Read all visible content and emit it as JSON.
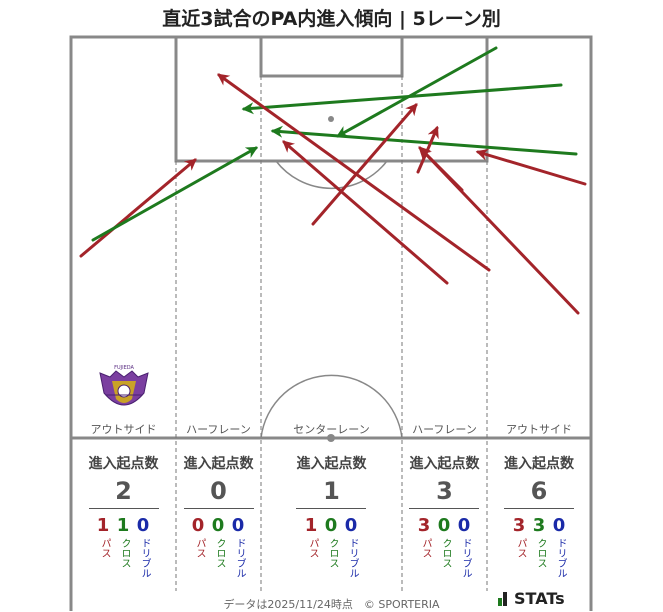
{
  "title": "直近3試合のPA内進入傾向 | 5レーン別",
  "lanes": [
    {
      "label": "アウトサイド",
      "header": "進入起点数",
      "total": "2",
      "pass": "1",
      "cross": "1",
      "dribble": "0"
    },
    {
      "label": "ハーフレーン",
      "header": "進入起点数",
      "total": "0",
      "pass": "0",
      "cross": "0",
      "dribble": "0"
    },
    {
      "label": "センターレーン",
      "header": "進入起点数",
      "total": "1",
      "pass": "1",
      "cross": "0",
      "dribble": "0"
    },
    {
      "label": "ハーフレーン",
      "header": "進入起点数",
      "total": "3",
      "pass": "3",
      "cross": "0",
      "dribble": "0"
    },
    {
      "label": "アウトサイド",
      "header": "進入起点数",
      "total": "6",
      "pass": "3",
      "cross": "3",
      "dribble": "0"
    }
  ],
  "type_labels": {
    "pass": "パス",
    "cross": "クロス",
    "dribble": "ドリブル"
  },
  "colors": {
    "pass": "#a3242a",
    "cross": "#1e7a1e",
    "dribble": "#1a2aa8",
    "pitch_line": "#888888"
  },
  "logo": {
    "name": "fujieda-myfc-crest",
    "text": "FUJIEDA"
  },
  "footer": "データは2025/11/24時点　© SPORTERIA",
  "brand": "STATs",
  "arrows": [
    {
      "type": "pass",
      "from": [
        81,
        256
      ],
      "to": [
        195,
        160
      ]
    },
    {
      "type": "cross",
      "from": [
        93,
        240
      ],
      "to": [
        256,
        148
      ]
    },
    {
      "type": "cross",
      "from": [
        496,
        48
      ],
      "to": [
        338,
        136
      ]
    },
    {
      "type": "cross",
      "from": [
        561,
        85
      ],
      "to": [
        244,
        109
      ]
    },
    {
      "type": "cross",
      "from": [
        576,
        154
      ],
      "to": [
        273,
        131
      ]
    },
    {
      "type": "pass",
      "from": [
        489,
        270
      ],
      "to": [
        219,
        75
      ]
    },
    {
      "type": "pass",
      "from": [
        313,
        224
      ],
      "to": [
        416,
        105
      ]
    },
    {
      "type": "pass",
      "from": [
        447,
        283
      ],
      "to": [
        284,
        142
      ]
    },
    {
      "type": "pass",
      "from": [
        578,
        313
      ],
      "to": [
        421,
        149
      ]
    },
    {
      "type": "pass",
      "from": [
        418,
        172
      ],
      "to": [
        437,
        128
      ]
    },
    {
      "type": "pass",
      "from": [
        585,
        184
      ],
      "to": [
        478,
        152
      ]
    },
    {
      "type": "pass",
      "from": [
        462,
        190
      ],
      "to": [
        420,
        148
      ]
    }
  ]
}
